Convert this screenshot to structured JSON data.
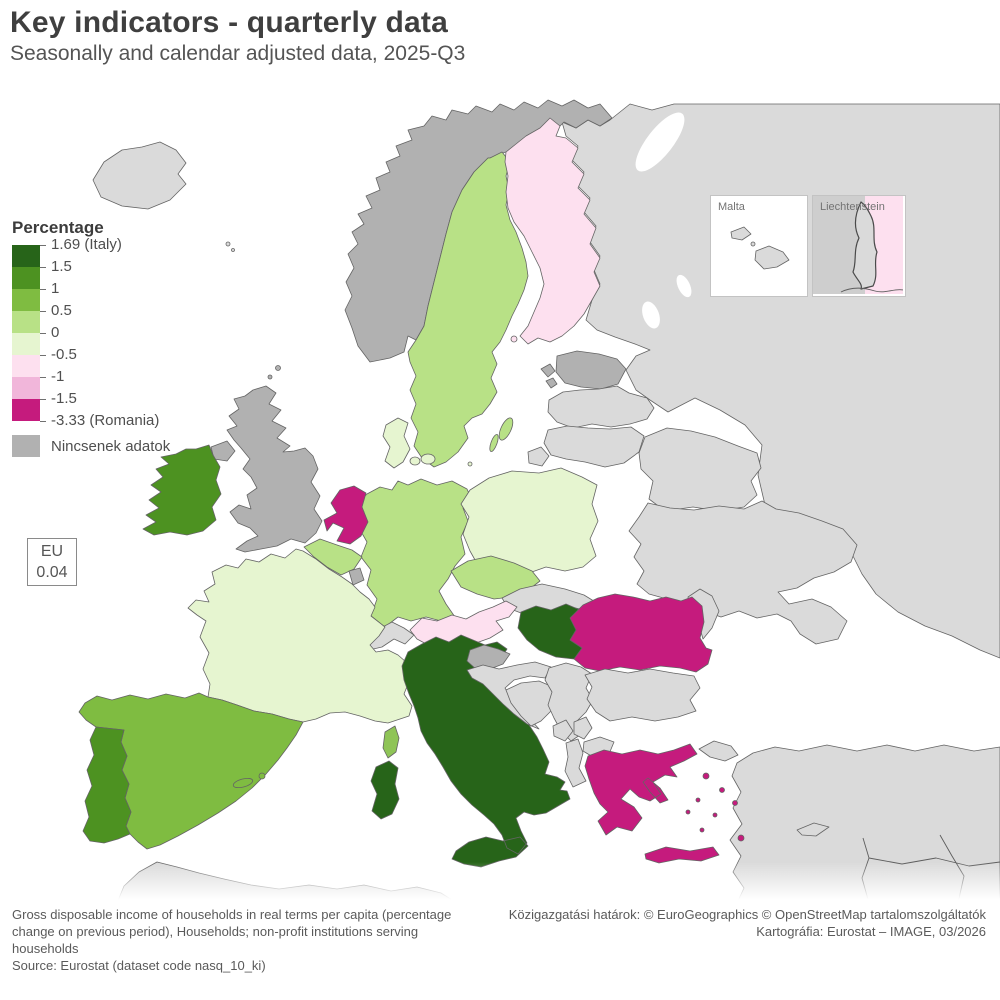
{
  "header": {
    "title": "Key indicators - quarterly data",
    "subtitle": "Seasonally and calendar adjusted data, 2025-Q3"
  },
  "legend": {
    "title": "Percentage",
    "ticks": [
      "1.69 (Italy)",
      "1.5",
      "1",
      "0.5",
      "0",
      "-0.5",
      "-1",
      "-1.5",
      "-3.33 (Romania)"
    ],
    "class_colors": [
      "#276419",
      "#4d9221",
      "#7fbc41",
      "#b8e186",
      "#e6f5d0",
      "#fde0ef",
      "#f1b6da",
      "#c51b7d"
    ],
    "no_data_label": "Nincsenek adatok",
    "no_data_color": "#b1b1b1"
  },
  "eu_box": {
    "label": "EU",
    "value": "0.04"
  },
  "insets": [
    {
      "label": "Malta"
    },
    {
      "label": "Liechtenstein"
    }
  ],
  "footer": {
    "left_lines": [
      "Gross disposable income of households in real terms per capita (percentage",
      "change on previous period), Households; non-profit institutions serving",
      "households"
    ],
    "source_line": "Source: Eurostat (dataset code nasq_10_ki)",
    "right_lines": [
      "Közigazgatási határok: © EuroGeographics © OpenStreetMap tartalomszolgáltatók",
      "Kartográfia: Eurostat – IMAGE, 03/2026"
    ]
  },
  "map": {
    "colors": {
      "c1": "#276419",
      "c2": "#4d9221",
      "c3": "#7fbc41",
      "c3b": "#8fc457",
      "c4": "#b8e186",
      "c5": "#e6f5d0",
      "c6": "#fde0ef",
      "c7": "#f1b6da",
      "c8": "#c51b7d",
      "no_data": "#b1b1b1",
      "other": "#dadada",
      "border": "#646464"
    },
    "countries": {
      "iceland": "other",
      "faroe": "other",
      "norway": "no_data",
      "sweden": "c4",
      "finland": "c6",
      "estonia": "no_data",
      "latvia": "other",
      "lithuania": "other",
      "kaliningrad": "other",
      "russia": "other",
      "belarus": "other",
      "ukraine": "other",
      "moldova": "other",
      "uk": "no_data",
      "ireland": "c2",
      "denmark": "c5",
      "netherlands": "c8",
      "belgium": "c4",
      "luxembourg": "no_data",
      "germany": "c4",
      "poland": "c5",
      "czechia": "c4",
      "slovakia": "other",
      "austria": "c6",
      "switzerland": "other",
      "france": "c5",
      "corsica": "c3b",
      "spain": "c3",
      "balearics": "c3",
      "portugal": "c2",
      "italy": "c1",
      "hungary": "c1",
      "slovenia": "no_data",
      "croatia": "other",
      "bosnia": "other",
      "serbia": "other",
      "montenegro": "other",
      "kosovo": "other",
      "north_macedonia": "other",
      "albania": "other",
      "romania": "c8",
      "bulgaria": "other",
      "greece": "c8",
      "turkey": "other",
      "turkey_eu": "other",
      "cyprus": "other",
      "africa": "other",
      "malta_inset": "other",
      "liechtenstein_inset": "other",
      "austria_inset": "c6"
    }
  }
}
